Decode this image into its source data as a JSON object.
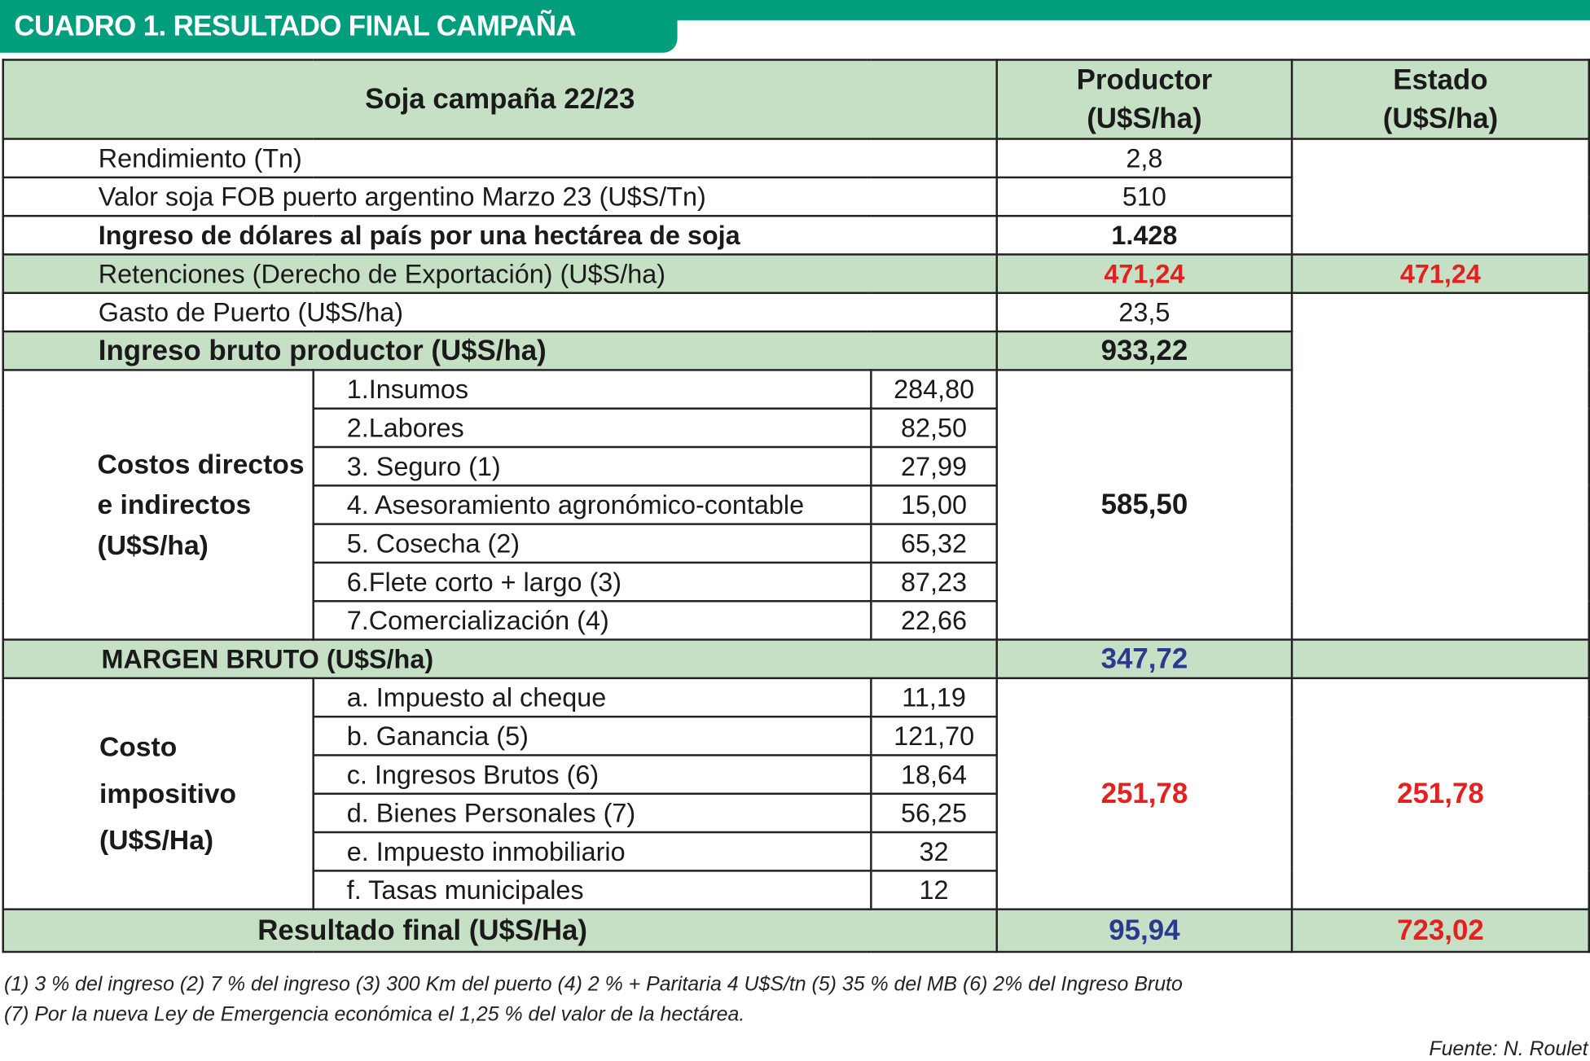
{
  "title": "CUADRO 1. RESULTADO FINAL CAMPAÑA 2022/23",
  "header": {
    "concept": "Soja campaña 22/23",
    "productor": [
      "Productor",
      "(U$S/ha)"
    ],
    "estado": [
      "Estado",
      "(U$S/ha)"
    ]
  },
  "rows": {
    "rendimiento": {
      "label": "Rendimiento (Tn)",
      "productor": "2,8"
    },
    "valor_fob": {
      "label": "Valor soja FOB puerto argentino Marzo 23 (U$S/Tn)",
      "productor": "510"
    },
    "ingreso_dolares": {
      "label": "Ingreso de dólares al país por una hectárea de soja",
      "productor": "1.428"
    },
    "retenciones": {
      "label": "Retenciones (Derecho de Exportación) (U$S/ha)",
      "productor": "471,24",
      "estado": "471,24"
    },
    "gasto_puerto": {
      "label": "Gasto de Puerto (U$S/ha)",
      "productor": "23,5"
    },
    "ingreso_bruto": {
      "label": "Ingreso bruto productor (U$S/ha)",
      "productor": "933,22"
    },
    "costos": {
      "group_label": [
        "Costos directos",
        "e indirectos",
        "(U$S/ha)"
      ],
      "items": [
        {
          "label": "1.Insumos",
          "value": "284,80"
        },
        {
          "label": "2.Labores",
          "value": "82,50"
        },
        {
          "label": "3. Seguro (1)",
          "value": "27,99"
        },
        {
          "label": "4. Asesoramiento agronómico-contable",
          "value": "15,00"
        },
        {
          "label": "5. Cosecha (2)",
          "value": "65,32"
        },
        {
          "label": "6.Flete corto + largo (3)",
          "value": "87,23"
        },
        {
          "label": "7.Comercialización (4)",
          "value": "22,66"
        }
      ],
      "productor": "585,50"
    },
    "margen_bruto": {
      "label": "MARGEN BRUTO (U$S/ha)",
      "productor": "347,72"
    },
    "impositivo": {
      "group_label": [
        "Costo",
        "impositivo",
        "(U$S/Ha)"
      ],
      "items": [
        {
          "label": "a. Impuesto al cheque",
          "value": "11,19"
        },
        {
          "label": "b. Ganancia (5)",
          "value": "121,70"
        },
        {
          "label": "c. Ingresos Brutos (6)",
          "value": "18,64"
        },
        {
          "label": "d. Bienes Personales (7)",
          "value": "56,25"
        },
        {
          "label": "e. Impuesto inmobiliario",
          "value": "32"
        },
        {
          "label": "f. Tasas municipales",
          "value": "12"
        }
      ],
      "productor": "251,78",
      "estado": "251,78"
    },
    "resultado_final": {
      "label": "Resultado  final  (U$S/Ha)",
      "productor": "95,94",
      "estado": "723,02"
    }
  },
  "footnotes": [
    "(1) 3 % del ingreso (2) 7 % del ingreso (3) 300 Km del puerto (4) 2 % + Paritaria 4 U$S/tn (5) 35 % del MB (6) 2% del Ingreso Bruto",
    "(7) Por la nueva Ley de Emergencia económica el 1,25 % del valor de la hectárea."
  ],
  "source": "Fuente: N. Roulet",
  "colors": {
    "brand_green": "#009E7C",
    "header_fill": "#C6E0C5",
    "negative_red": "#E3211F",
    "result_blue": "#2B3A8F"
  }
}
